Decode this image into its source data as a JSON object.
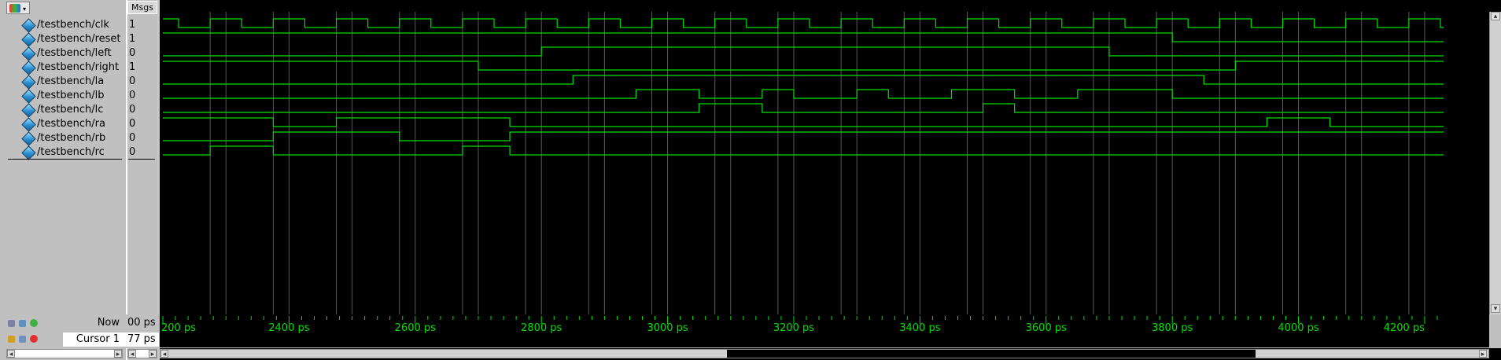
{
  "header": {
    "msgs_label": "Msgs"
  },
  "signals": [
    {
      "name": "/testbench/clk",
      "value": "1"
    },
    {
      "name": "/testbench/reset",
      "value": "1"
    },
    {
      "name": "/testbench/left",
      "value": "0"
    },
    {
      "name": "/testbench/right",
      "value": "1"
    },
    {
      "name": "/testbench/la",
      "value": "0"
    },
    {
      "name": "/testbench/lb",
      "value": "0"
    },
    {
      "name": "/testbench/lc",
      "value": "0"
    },
    {
      "name": "/testbench/ra",
      "value": "0"
    },
    {
      "name": "/testbench/rb",
      "value": "0"
    },
    {
      "name": "/testbench/rc",
      "value": "0"
    }
  ],
  "footer": {
    "now_label": "Now",
    "now_value": "00 ps",
    "cursor_label": "Cursor 1",
    "cursor_value": "77 ps"
  },
  "timeline": {
    "ticks": [
      "200 ps",
      "2400 ps",
      "2600 ps",
      "2800 ps",
      "3000 ps",
      "3200 ps",
      "3400 ps",
      "3600 ps",
      "3800 ps",
      "4000 ps",
      "4200 ps"
    ]
  },
  "waveforms": {
    "clk_period_ps": 100,
    "time_start_ps": 2200,
    "time_end_ps": 4230,
    "signals": {
      "clk": [
        [
          2200,
          1
        ],
        [
          2225,
          0
        ],
        [
          2275,
          1
        ],
        [
          2325,
          0
        ],
        [
          2375,
          1
        ],
        [
          2425,
          0
        ],
        [
          2475,
          1
        ],
        [
          2525,
          0
        ],
        [
          2575,
          1
        ],
        [
          2625,
          0
        ],
        [
          2675,
          1
        ],
        [
          2725,
          0
        ],
        [
          2775,
          1
        ],
        [
          2825,
          0
        ],
        [
          2875,
          1
        ],
        [
          2925,
          0
        ],
        [
          2975,
          1
        ],
        [
          3025,
          0
        ],
        [
          3075,
          1
        ],
        [
          3125,
          0
        ],
        [
          3175,
          1
        ],
        [
          3225,
          0
        ],
        [
          3275,
          1
        ],
        [
          3325,
          0
        ],
        [
          3375,
          1
        ],
        [
          3425,
          0
        ],
        [
          3475,
          1
        ],
        [
          3525,
          0
        ],
        [
          3575,
          1
        ],
        [
          3625,
          0
        ],
        [
          3675,
          1
        ],
        [
          3725,
          0
        ],
        [
          3775,
          1
        ],
        [
          3825,
          0
        ],
        [
          3875,
          1
        ],
        [
          3925,
          0
        ],
        [
          3975,
          1
        ],
        [
          4025,
          0
        ],
        [
          4075,
          1
        ],
        [
          4125,
          0
        ],
        [
          4175,
          1
        ],
        [
          4225,
          0
        ]
      ],
      "reset": [
        [
          2200,
          1
        ],
        [
          3800,
          0
        ]
      ],
      "left": [
        [
          2200,
          0
        ],
        [
          2800,
          1
        ],
        [
          3700,
          0
        ]
      ],
      "right": [
        [
          2200,
          1
        ],
        [
          2700,
          0
        ],
        [
          3900,
          1
        ]
      ],
      "la": [
        [
          2200,
          0
        ],
        [
          2850,
          1
        ],
        [
          3850,
          0
        ]
      ],
      "lb": [
        [
          2200,
          0
        ],
        [
          2950,
          1
        ],
        [
          3050,
          0
        ],
        [
          3150,
          1
        ],
        [
          3200,
          0
        ],
        [
          3300,
          1
        ],
        [
          3350,
          0
        ],
        [
          3450,
          1
        ],
        [
          3550,
          0
        ],
        [
          3650,
          1
        ],
        [
          3800,
          0
        ]
      ],
      "lc": [
        [
          2200,
          0
        ],
        [
          3050,
          1
        ],
        [
          3150,
          0
        ],
        [
          3500,
          1
        ],
        [
          3550,
          0
        ]
      ],
      "ra": [
        [
          2200,
          1
        ],
        [
          2375,
          0
        ],
        [
          2475,
          1
        ],
        [
          2750,
          0
        ],
        [
          3950,
          1
        ],
        [
          4050,
          0
        ]
      ],
      "rb": [
        [
          2200,
          0
        ],
        [
          2375,
          1
        ],
        [
          2575,
          0
        ],
        [
          2750,
          1
        ]
      ],
      "rc": [
        [
          2200,
          0
        ],
        [
          2275,
          1
        ],
        [
          2375,
          0
        ],
        [
          2675,
          1
        ],
        [
          2750,
          0
        ]
      ]
    }
  },
  "colors": {
    "panel_bg": "#c0c0c0",
    "wave_bg": "#000000",
    "wave_green": "#00e000",
    "grid_gray": "#5a5a5a"
  }
}
